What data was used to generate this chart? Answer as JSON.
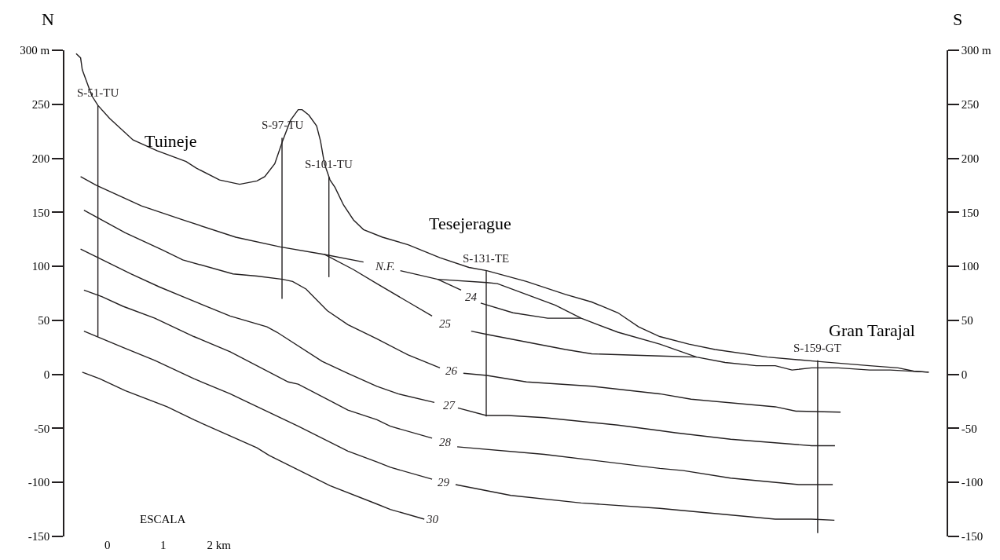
{
  "chart_data": {
    "type": "line",
    "xlim": [
      -0.77,
      15.04
    ],
    "xticks": [
      0,
      1,
      {
        "value": 2,
        "label": "2 km"
      }
    ],
    "xlabel": "ESCALA",
    "ylim": [
      -150,
      300
    ],
    "yticks": [
      {
        "value": 300,
        "label": "300 m"
      },
      250,
      200,
      150,
      100,
      50,
      0,
      -50,
      -100,
      -150
    ],
    "y2lim": [
      -150,
      300
    ],
    "y2ticks": [
      {
        "value": 300,
        "label": "300 m"
      },
      250,
      200,
      150,
      100,
      50,
      0,
      -50,
      -100,
      -150
    ],
    "legend": false,
    "marker": "none",
    "line_style": "solid",
    "annotations": [
      "N",
      "S",
      "Tuineje",
      "Tesejerague",
      "Gran Tarajal"
    ],
    "series": [
      {
        "color": "#231f20",
        "x": [
          -0.56,
          -0.48,
          -0.45,
          -0.28,
          -0.17,
          0.04,
          0.46,
          0.89,
          1.41,
          1.59,
          2.01,
          2.37,
          2.68,
          2.82,
          3.0,
          3.14,
          3.28,
          3.42,
          3.49,
          3.61,
          3.75,
          3.82,
          3.89,
          3.99,
          4.08,
          4.23,
          4.41,
          4.59,
          4.93,
          5.39,
          5.96,
          6.48,
          6.8,
          7.51,
          8.21,
          8.68,
          9.15,
          9.52,
          9.9,
          10.42,
          10.89,
          11.83,
          12.72,
          13.66,
          14.17,
          14.45,
          14.72
        ],
        "values": [
          297,
          293,
          282,
          258,
          249,
          237,
          217,
          207,
          197,
          191,
          180,
          176,
          179,
          183,
          195,
          216,
          235,
          245,
          245,
          240,
          230,
          216,
          195,
          180,
          173,
          157,
          143,
          134,
          127,
          120,
          108,
          99,
          96,
          86,
          74,
          67,
          57,
          44,
          35,
          28,
          23,
          16,
          12,
          8,
          6,
          3,
          2
        ]
      },
      {
        "name": "N.F.",
        "color": "#231f20",
        "x": [
          -0.48,
          -0.2,
          0.61,
          1.35,
          2.3,
          3.1,
          3.89,
          4.59,
          4.97,
          5.25,
          5.92,
          6.8,
          6.99,
          7.51,
          8.03,
          8.49,
          9.15,
          9.9,
          10.56,
          11.07,
          11.63,
          11.97,
          12.27,
          12.62,
          13.1,
          13.66,
          14.03,
          14.72
        ],
        "values": [
          183,
          175,
          156,
          143,
          127,
          118,
          111,
          104,
          null,
          96,
          88,
          85,
          84,
          74,
          64,
          52,
          39,
          28,
          16,
          11,
          8,
          8,
          4,
          6,
          6,
          4,
          4,
          2
        ]
      },
      {
        "name": "24",
        "color": "#231f20",
        "x": [
          5.92,
          6.34,
          6.52,
          6.69,
          7.27,
          7.89,
          8.49
        ],
        "values": [
          88,
          78,
          null,
          66,
          57,
          52,
          52
        ]
      },
      {
        "name": "25",
        "color": "#231f20",
        "x": [
          3.89,
          4.41,
          4.83,
          5.39,
          5.82,
          6.06,
          6.52,
          6.8,
          8.21,
          8.68,
          9.9,
          10.56
        ],
        "values": [
          111,
          97,
          84,
          67,
          54,
          null,
          40,
          37,
          23,
          19,
          17,
          16
        ]
      },
      {
        "name": "26",
        "color": "#231f20",
        "x": [
          -0.42,
          0.32,
          0.99,
          1.35,
          2.25,
          2.68,
          3.14,
          3.32,
          3.56,
          3.94,
          4.31,
          4.83,
          5.39,
          5.96,
          6.17,
          6.38,
          6.8,
          7.51,
          8.68,
          9.9,
          10.46,
          11.97,
          12.34,
          13.14
        ],
        "values": [
          152,
          131,
          115,
          106,
          93,
          91,
          88,
          86,
          79,
          59,
          46,
          33,
          18,
          6,
          null,
          1,
          -1,
          -7,
          -11,
          -18,
          -23,
          -30,
          -34,
          -35
        ]
      },
      {
        "name": "27",
        "color": "#231f20",
        "x": [
          -0.48,
          0.42,
          0.93,
          1.35,
          2.2,
          2.86,
          3.04,
          3.85,
          4.31,
          4.83,
          5.21,
          5.86,
          6.13,
          6.28,
          6.79,
          7.18,
          7.83,
          9.15,
          9.9,
          10.18,
          11.17,
          12.62,
          13.04
        ],
        "values": [
          116,
          93,
          81,
          72,
          54,
          44,
          39,
          12,
          1,
          -11,
          -18,
          -26,
          null,
          -31,
          -38,
          -38,
          -40,
          -47,
          -52,
          -54,
          -60,
          -66,
          -66
        ]
      },
      {
        "name": "28",
        "color": "#231f20",
        "x": [
          -0.42,
          -0.1,
          0.28,
          0.85,
          1.55,
          2.2,
          3.24,
          3.42,
          4.31,
          4.83,
          5.07,
          5.82,
          6.06,
          6.27,
          7.83,
          9.9,
          10.32,
          11.17,
          12.39,
          13.0
        ],
        "values": [
          78,
          72,
          63,
          52,
          35,
          21,
          -7,
          -9,
          -33,
          -42,
          -48,
          -59,
          null,
          -67,
          -74,
          -87,
          -89,
          -96,
          -102,
          -102
        ]
      },
      {
        "name": "29",
        "color": "#231f20",
        "x": [
          -0.42,
          0.28,
          0.85,
          1.55,
          2.2,
          3.42,
          4.31,
          4.83,
          5.07,
          5.82,
          6.03,
          6.24,
          7.23,
          8.49,
          9.9,
          11.97,
          12.62,
          13.03
        ],
        "values": [
          40,
          25,
          13,
          -4,
          -18,
          -48,
          -71,
          -81,
          -86,
          -97,
          null,
          -102,
          -112,
          -119,
          -124,
          -134,
          -134,
          -135
        ]
      },
      {
        "name": "30",
        "color": "#231f20",
        "x": [
          -0.45,
          -0.14,
          0.32,
          1.07,
          1.55,
          2.68,
          2.9,
          3.99,
          4.83,
          5.07,
          5.68
        ],
        "values": [
          2,
          -4,
          -15,
          -30,
          -42,
          -68,
          -75,
          -103,
          -120,
          -125,
          -134
        ]
      },
      {
        "name": "S-51-TU",
        "color": "#231f20",
        "x": [
          -0.17,
          -0.17
        ],
        "values": [
          249,
          35
        ]
      },
      {
        "name": "S-97-TU",
        "color": "#231f20",
        "x": [
          3.13,
          3.13
        ],
        "values": [
          219,
          70
        ]
      },
      {
        "name": "S-101-TU",
        "color": "#231f20",
        "x": [
          3.97,
          3.97
        ],
        "values": [
          183,
          90
        ]
      },
      {
        "name": "S-131-TE",
        "color": "#231f20",
        "x": [
          6.79,
          6.79
        ],
        "values": [
          96,
          -39
        ]
      },
      {
        "name": "S-159-GT",
        "color": "#231f20",
        "axis": "y2",
        "x": [
          12.73,
          12.73
        ],
        "values": [
          13,
          -147
        ]
      }
    ]
  }
}
